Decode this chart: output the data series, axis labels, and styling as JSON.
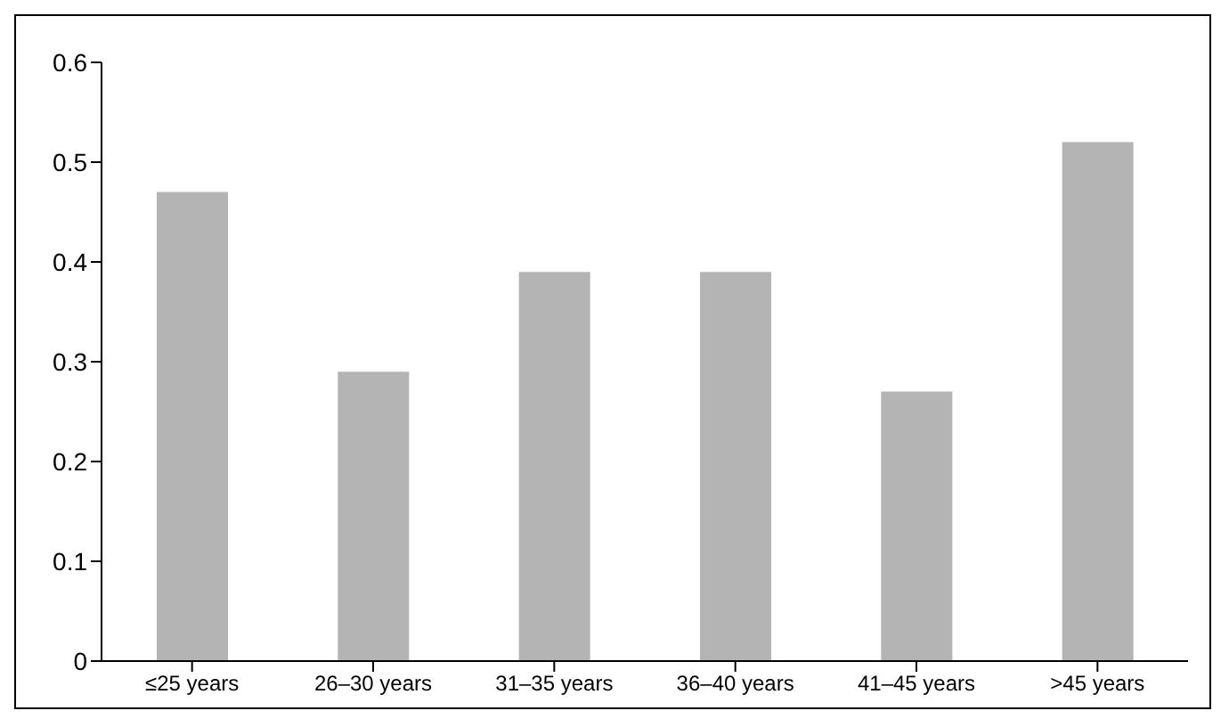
{
  "chart_data": {
    "type": "bar",
    "categories": [
      "≤25 years",
      "26–30 years",
      "31–35 years",
      "36–40 years",
      "41–45 years",
      ">45 years"
    ],
    "values": [
      0.47,
      0.29,
      0.39,
      0.39,
      0.27,
      0.52
    ],
    "color": "#b4b4b4",
    "ylim": [
      0,
      0.6
    ],
    "yticks": [
      0,
      0.1,
      0.2,
      0.3,
      0.4,
      0.5,
      0.6
    ],
    "grid": false
  }
}
